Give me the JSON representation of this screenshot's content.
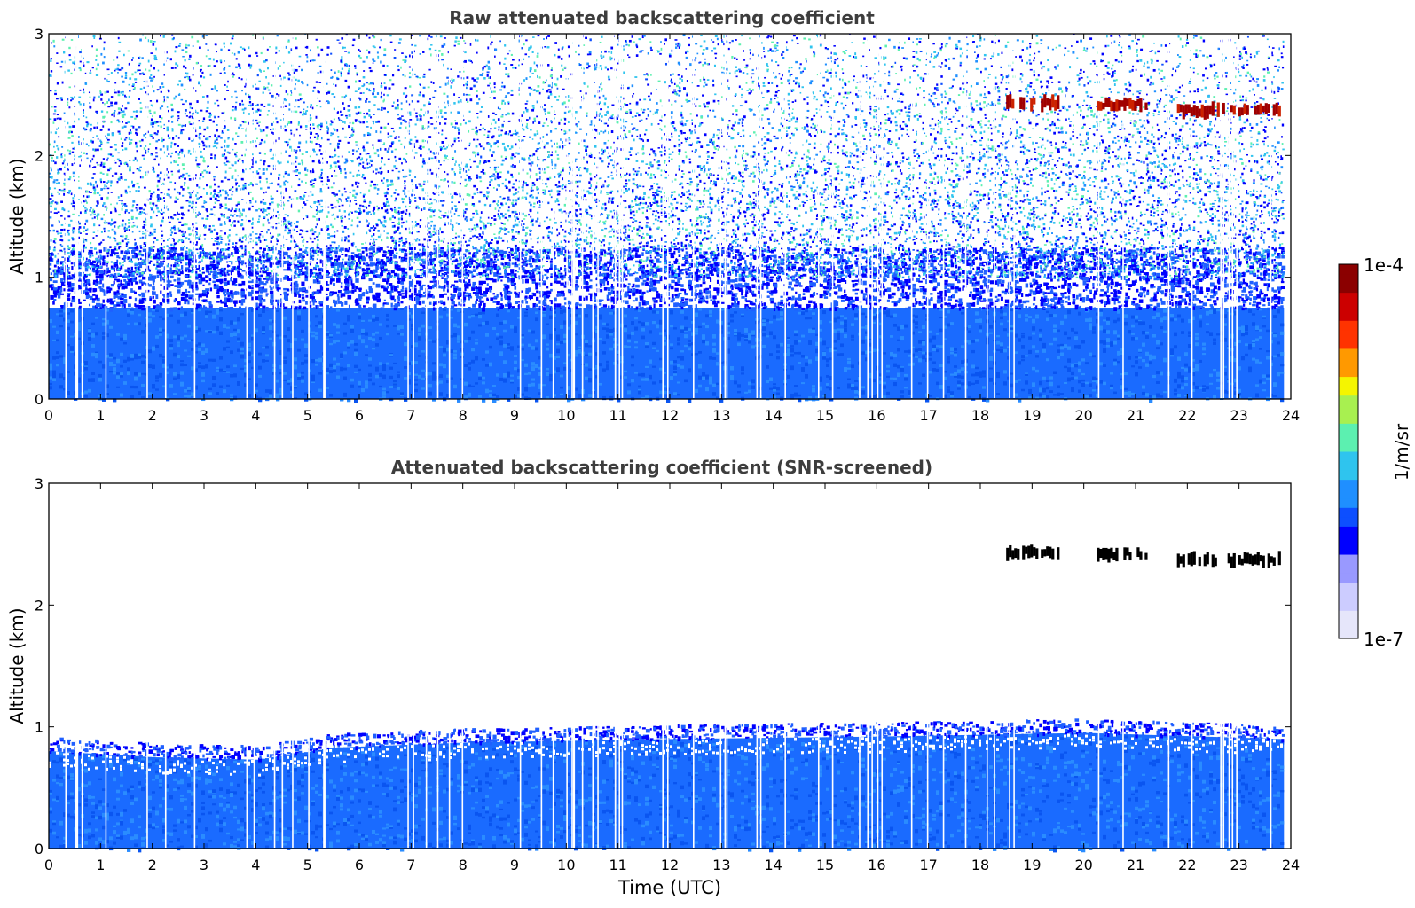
{
  "chart_data": [
    {
      "type": "heatmap",
      "title": "Raw attenuated backscattering coefficient",
      "xlabel": "",
      "ylabel": "Altitude (km)",
      "xlim": [
        0,
        24
      ],
      "ylim": [
        0,
        3
      ],
      "xticks": [
        "0",
        "1",
        "2",
        "3",
        "4",
        "5",
        "6",
        "7",
        "8",
        "9",
        "10",
        "11",
        "12",
        "13",
        "14",
        "15",
        "16",
        "17",
        "18",
        "19",
        "20",
        "21",
        "22",
        "23",
        "24"
      ],
      "yticks": [
        "0",
        "1",
        "2",
        "3"
      ],
      "layers": [
        {
          "from_km": 0.0,
          "to_km": 0.75,
          "description": "dense aerosol boundary layer",
          "log10_value": -5.9
        },
        {
          "from_km": 0.75,
          "to_km": 1.2,
          "description": "noisy boundary-layer top",
          "log10_value": -6.2
        },
        {
          "from_km": 1.2,
          "to_km": 3.0,
          "description": "sparse noise",
          "log10_value": -5.8
        }
      ],
      "cloud_segments": [
        {
          "t_start": 18.5,
          "t_end": 19.5,
          "altitude_km": 2.43,
          "log10_value": -4.0
        },
        {
          "t_start": 20.2,
          "t_end": 21.2,
          "altitude_km": 2.42,
          "log10_value": -4.0
        },
        {
          "t_start": 21.8,
          "t_end": 23.8,
          "altitude_km": 2.37,
          "log10_value": -4.0
        }
      ]
    },
    {
      "type": "heatmap",
      "title": "Attenuated backscattering coefficient (SNR-screened)",
      "xlabel": "Time (UTC)",
      "ylabel": "Altitude (km)",
      "xlim": [
        0,
        24
      ],
      "ylim": [
        0,
        3
      ],
      "xticks": [
        "0",
        "1",
        "2",
        "3",
        "4",
        "5",
        "6",
        "7",
        "8",
        "9",
        "10",
        "11",
        "12",
        "13",
        "14",
        "15",
        "16",
        "17",
        "18",
        "19",
        "20",
        "21",
        "22",
        "23",
        "24"
      ],
      "yticks": [
        "0",
        "1",
        "2",
        "3"
      ],
      "boundary_layer_top_km": [
        {
          "t": 0,
          "h": 0.85
        },
        {
          "t": 2,
          "h": 0.8
        },
        {
          "t": 4,
          "h": 0.78
        },
        {
          "t": 5.5,
          "h": 0.88
        },
        {
          "t": 8,
          "h": 0.92
        },
        {
          "t": 12,
          "h": 0.95
        },
        {
          "t": 16,
          "h": 0.97
        },
        {
          "t": 20,
          "h": 1.0
        },
        {
          "t": 23.8,
          "h": 0.95
        }
      ],
      "cloud_segments": [
        {
          "t_start": 18.5,
          "t_end": 19.5,
          "altitude_km": 2.43
        },
        {
          "t_start": 20.2,
          "t_end": 21.2,
          "altitude_km": 2.42
        },
        {
          "t_start": 21.8,
          "t_end": 23.8,
          "altitude_km": 2.37
        }
      ]
    }
  ],
  "colorbar": {
    "max_label": "1e-4",
    "min_label": "1e-7",
    "unit_label": "1/m/sr",
    "colors": [
      "#e6e6fa",
      "#ccccff",
      "#9999ff",
      "#0000ff",
      "#0d4fff",
      "#1f8fff",
      "#2fc4ee",
      "#5cf0b0",
      "#a8f050",
      "#f5f500",
      "#ff9900",
      "#ff3300",
      "#cc0000",
      "#8b0000"
    ]
  }
}
